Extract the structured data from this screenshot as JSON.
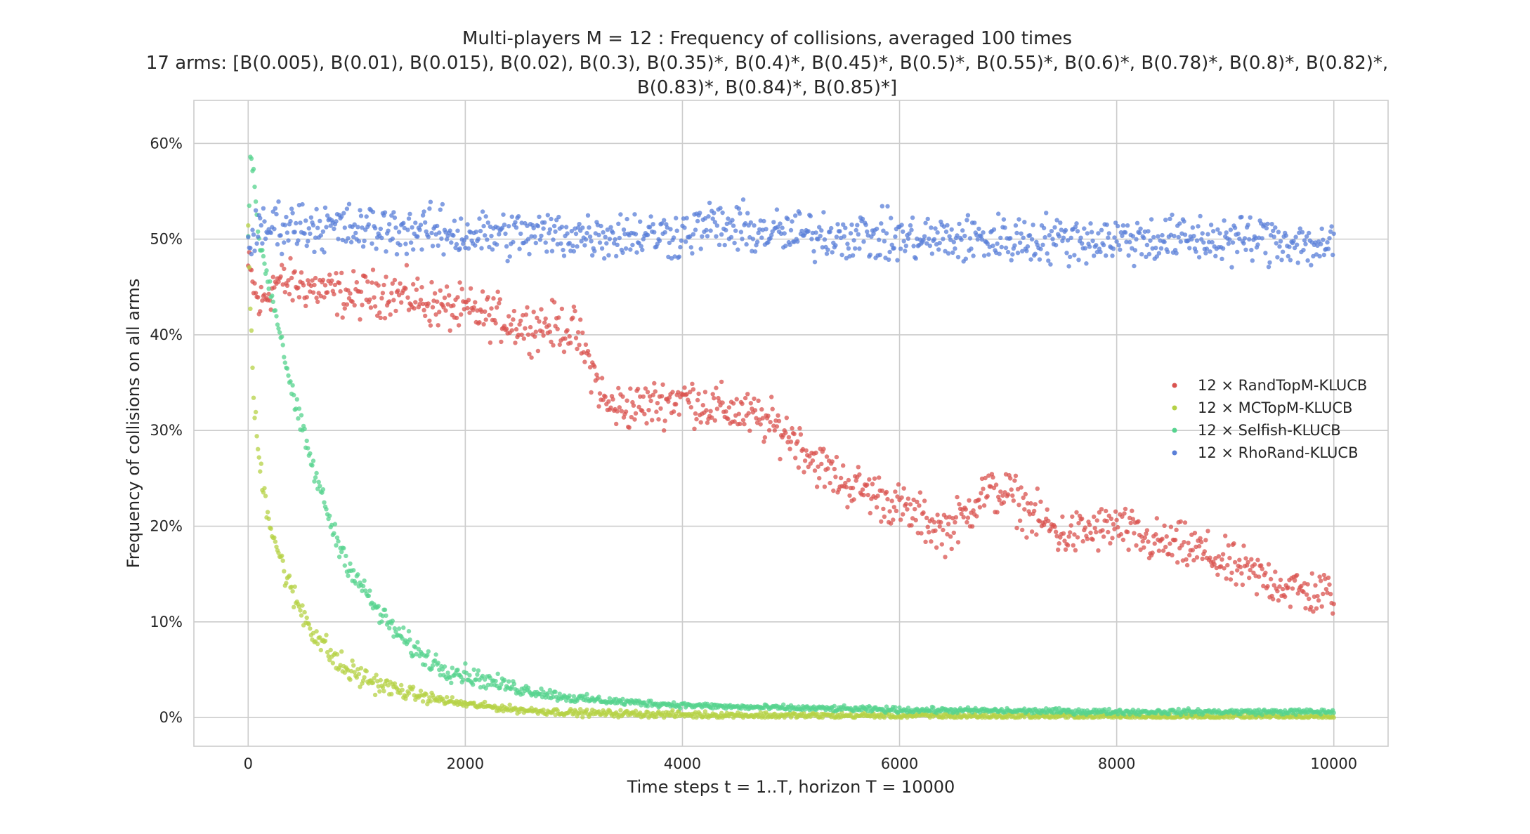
{
  "chart_data": {
    "type": "scatter",
    "title": {
      "line1": "Multi-players M = 12 : Frequency of collisions, averaged 100 times",
      "line2": "17 arms: [B(0.005), B(0.01), B(0.015), B(0.02), B(0.3), B(0.35)*, B(0.4)*, B(0.45)*, B(0.5)*, B(0.55)*, B(0.6)*, B(0.78)*, B(0.8)*, B(0.82)*,",
      "line3": "B(0.83)*, B(0.84)*, B(0.85)*]"
    },
    "xlabel": "Time steps t = 1..T, horizon T = 10000",
    "ylabel": "Frequency of collisions on all arms",
    "xlim": [
      -500,
      10500
    ],
    "ylim": [
      -0.03,
      0.645
    ],
    "x_ticks": [
      0,
      2000,
      4000,
      6000,
      8000,
      10000
    ],
    "x_tick_labels": [
      "0",
      "2000",
      "4000",
      "6000",
      "8000",
      "10000"
    ],
    "y_ticks": [
      0,
      0.1,
      0.2,
      0.3,
      0.4,
      0.5,
      0.6
    ],
    "y_tick_labels": [
      "0%",
      "10%",
      "20%",
      "30%",
      "40%",
      "50%",
      "60%"
    ],
    "grid": true,
    "legend_position": "center-right",
    "series": [
      {
        "name": "12 × RandTopM-KLUCB",
        "color": "#d9534f",
        "points": [
          [
            0,
            0.47
          ],
          [
            100,
            0.43
          ],
          [
            250,
            0.455
          ],
          [
            500,
            0.452
          ],
          [
            750,
            0.445
          ],
          [
            1000,
            0.44
          ],
          [
            1250,
            0.445
          ],
          [
            1500,
            0.44
          ],
          [
            1750,
            0.43
          ],
          [
            2000,
            0.425
          ],
          [
            2250,
            0.42
          ],
          [
            2500,
            0.41
          ],
          [
            2750,
            0.41
          ],
          [
            3000,
            0.405
          ],
          [
            3150,
            0.37
          ],
          [
            3300,
            0.325
          ],
          [
            3600,
            0.325
          ],
          [
            4000,
            0.335
          ],
          [
            4250,
            0.325
          ],
          [
            4500,
            0.32
          ],
          [
            4750,
            0.31
          ],
          [
            5000,
            0.295
          ],
          [
            5250,
            0.265
          ],
          [
            5500,
            0.245
          ],
          [
            5750,
            0.235
          ],
          [
            6000,
            0.22
          ],
          [
            6250,
            0.205
          ],
          [
            6400,
            0.195
          ],
          [
            6600,
            0.21
          ],
          [
            6750,
            0.235
          ],
          [
            7000,
            0.235
          ],
          [
            7250,
            0.21
          ],
          [
            7500,
            0.19
          ],
          [
            7750,
            0.195
          ],
          [
            8000,
            0.2
          ],
          [
            8250,
            0.185
          ],
          [
            8500,
            0.18
          ],
          [
            8750,
            0.175
          ],
          [
            9000,
            0.16
          ],
          [
            9250,
            0.15
          ],
          [
            9500,
            0.14
          ],
          [
            9750,
            0.13
          ],
          [
            10000,
            0.13
          ]
        ]
      },
      {
        "name": "12 × MCTopM-KLUCB",
        "color": "#b5d145",
        "points": [
          [
            0,
            0.5
          ],
          [
            25,
            0.42
          ],
          [
            50,
            0.33
          ],
          [
            100,
            0.27
          ],
          [
            150,
            0.235
          ],
          [
            200,
            0.205
          ],
          [
            300,
            0.165
          ],
          [
            400,
            0.13
          ],
          [
            500,
            0.11
          ],
          [
            600,
            0.09
          ],
          [
            700,
            0.075
          ],
          [
            800,
            0.06
          ],
          [
            900,
            0.05
          ],
          [
            1000,
            0.045
          ],
          [
            1200,
            0.035
          ],
          [
            1400,
            0.028
          ],
          [
            1600,
            0.022
          ],
          [
            1800,
            0.018
          ],
          [
            2000,
            0.014
          ],
          [
            2500,
            0.008
          ],
          [
            3000,
            0.005
          ],
          [
            3500,
            0.004
          ],
          [
            4000,
            0.003
          ],
          [
            5000,
            0.002
          ],
          [
            6000,
            0.002
          ],
          [
            7000,
            0.0015
          ],
          [
            8000,
            0.0015
          ],
          [
            9000,
            0.001
          ],
          [
            10000,
            0.001
          ]
        ]
      },
      {
        "name": "12 × Selfish-KLUCB",
        "color": "#55d38e",
        "points": [
          [
            0,
            0.5
          ],
          [
            20,
            0.59
          ],
          [
            60,
            0.55
          ],
          [
            100,
            0.5
          ],
          [
            200,
            0.45
          ],
          [
            300,
            0.4
          ],
          [
            400,
            0.34
          ],
          [
            500,
            0.3
          ],
          [
            600,
            0.26
          ],
          [
            700,
            0.225
          ],
          [
            800,
            0.19
          ],
          [
            900,
            0.165
          ],
          [
            1000,
            0.145
          ],
          [
            1200,
            0.11
          ],
          [
            1400,
            0.085
          ],
          [
            1600,
            0.065
          ],
          [
            1800,
            0.052
          ],
          [
            2000,
            0.045
          ],
          [
            2250,
            0.037
          ],
          [
            2500,
            0.03
          ],
          [
            2750,
            0.025
          ],
          [
            3000,
            0.02
          ],
          [
            3500,
            0.016
          ],
          [
            4000,
            0.013
          ],
          [
            4500,
            0.011
          ],
          [
            5000,
            0.01
          ],
          [
            6000,
            0.008
          ],
          [
            7000,
            0.007
          ],
          [
            8000,
            0.006
          ],
          [
            9000,
            0.006
          ],
          [
            10000,
            0.006
          ]
        ]
      },
      {
        "name": "12 × RhoRand-KLUCB",
        "color": "#5a7fd8",
        "points": [
          [
            0,
            0.5
          ],
          [
            250,
            0.515
          ],
          [
            500,
            0.515
          ],
          [
            1000,
            0.51
          ],
          [
            1500,
            0.51
          ],
          [
            2000,
            0.505
          ],
          [
            2500,
            0.505
          ],
          [
            3000,
            0.505
          ],
          [
            3500,
            0.505
          ],
          [
            4000,
            0.505
          ],
          [
            4250,
            0.515
          ],
          [
            4500,
            0.51
          ],
          [
            5000,
            0.505
          ],
          [
            5500,
            0.505
          ],
          [
            6000,
            0.5
          ],
          [
            6500,
            0.5
          ],
          [
            7000,
            0.5
          ],
          [
            7500,
            0.5
          ],
          [
            8000,
            0.5
          ],
          [
            8500,
            0.5
          ],
          [
            9000,
            0.5
          ],
          [
            9500,
            0.5
          ],
          [
            10000,
            0.49
          ]
        ]
      }
    ]
  }
}
